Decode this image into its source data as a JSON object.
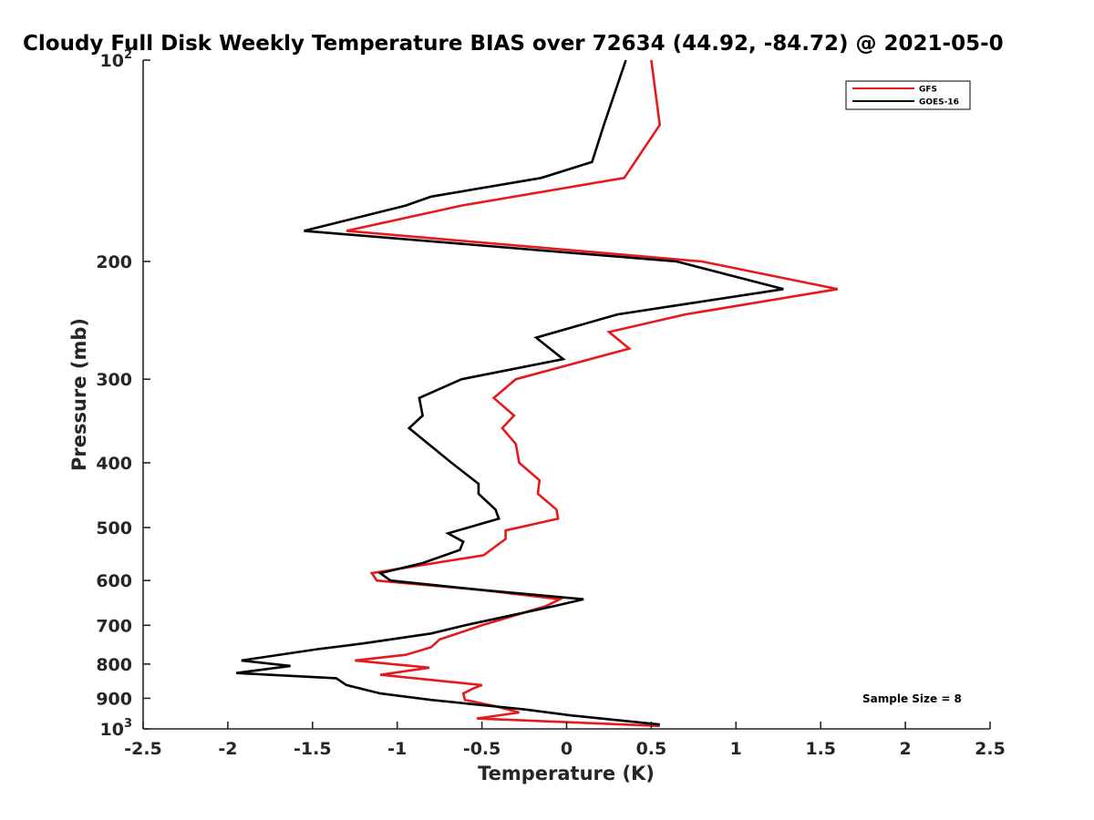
{
  "chart_data": {
    "type": "line",
    "title": "Cloudy Full Disk Weekly Temperature BIAS over 72634 (44.92, -84.72) @ 2021-05-0",
    "xlabel": "Temperature (K)",
    "ylabel": "Pressure (mb)",
    "xlim": [
      -2.5,
      2.5
    ],
    "ylim": [
      100,
      1000
    ],
    "y_scale": "log",
    "y_reversed": true,
    "x_ticks": [
      -2.5,
      -2,
      -1.5,
      -1,
      -0.5,
      0,
      0.5,
      1,
      1.5,
      2,
      2.5
    ],
    "x_tick_labels": [
      "-2.5",
      "-2",
      "-1.5",
      "-1",
      "-0.5",
      "0",
      "0.5",
      "1",
      "1.5",
      "2",
      "2.5"
    ],
    "y_ticks": [
      {
        "value": 100,
        "base": "10",
        "exp": "2"
      },
      {
        "value": 200,
        "label": "200"
      },
      {
        "value": 300,
        "label": "300"
      },
      {
        "value": 400,
        "label": "400"
      },
      {
        "value": 500,
        "label": "500"
      },
      {
        "value": 600,
        "label": "600"
      },
      {
        "value": 700,
        "label": "700"
      },
      {
        "value": 800,
        "label": "800"
      },
      {
        "value": 900,
        "label": "900"
      },
      {
        "value": 1000,
        "base": "10",
        "exp": "3"
      }
    ],
    "grid": false,
    "legend_position": "top-right",
    "annotation": "Sample Size = 8",
    "series": [
      {
        "name": "GFS",
        "color": "#e41a1c",
        "points": [
          [
            0.5,
            100
          ],
          [
            0.55,
            125
          ],
          [
            0.34,
            150
          ],
          [
            -0.62,
            165
          ],
          [
            -1.3,
            180
          ],
          [
            0.8,
            200
          ],
          [
            1.6,
            220
          ],
          [
            0.7,
            240
          ],
          [
            0.25,
            255
          ],
          [
            0.37,
            270
          ],
          [
            -0.3,
            300
          ],
          [
            -0.43,
            320
          ],
          [
            -0.31,
            340
          ],
          [
            -0.38,
            355
          ],
          [
            -0.3,
            375
          ],
          [
            -0.28,
            400
          ],
          [
            -0.16,
            425
          ],
          [
            -0.17,
            445
          ],
          [
            -0.06,
            470
          ],
          [
            -0.05,
            485
          ],
          [
            -0.36,
            505
          ],
          [
            -0.36,
            520
          ],
          [
            -0.49,
            550
          ],
          [
            -1.15,
            585
          ],
          [
            -1.12,
            600
          ],
          [
            -0.5,
            620
          ],
          [
            -0.04,
            640
          ],
          [
            -0.12,
            655
          ],
          [
            -0.5,
            700
          ],
          [
            -0.75,
            735
          ],
          [
            -0.8,
            755
          ],
          [
            -0.95,
            775
          ],
          [
            -1.25,
            790
          ],
          [
            -0.81,
            810
          ],
          [
            -1.1,
            830
          ],
          [
            -0.5,
            860
          ],
          [
            -0.55,
            870
          ],
          [
            -0.61,
            885
          ],
          [
            -0.6,
            905
          ],
          [
            -0.42,
            925
          ],
          [
            -0.28,
            945
          ],
          [
            -0.53,
            965
          ],
          [
            0.55,
            990
          ]
        ]
      },
      {
        "name": "GOES-16",
        "color": "#000000",
        "points": [
          [
            0.35,
            100
          ],
          [
            0.22,
            125
          ],
          [
            0.15,
            142
          ],
          [
            -0.15,
            150
          ],
          [
            -0.8,
            160
          ],
          [
            -0.95,
            165
          ],
          [
            -1.55,
            180
          ],
          [
            0.65,
            200
          ],
          [
            1.28,
            220
          ],
          [
            0.3,
            240
          ],
          [
            -0.18,
            260
          ],
          [
            -0.02,
            280
          ],
          [
            -0.62,
            300
          ],
          [
            -0.87,
            320
          ],
          [
            -0.85,
            340
          ],
          [
            -0.93,
            355
          ],
          [
            -0.68,
            400
          ],
          [
            -0.52,
            430
          ],
          [
            -0.52,
            445
          ],
          [
            -0.42,
            470
          ],
          [
            -0.4,
            485
          ],
          [
            -0.7,
            510
          ],
          [
            -0.61,
            525
          ],
          [
            -0.63,
            540
          ],
          [
            -0.85,
            565
          ],
          [
            -1.1,
            585
          ],
          [
            -1.04,
            600
          ],
          [
            -0.5,
            620
          ],
          [
            0.1,
            640
          ],
          [
            -0.07,
            655
          ],
          [
            -0.6,
            700
          ],
          [
            -0.8,
            720
          ],
          [
            -1.2,
            745
          ],
          [
            -1.47,
            760
          ],
          [
            -1.92,
            790
          ],
          [
            -1.63,
            805
          ],
          [
            -1.95,
            825
          ],
          [
            -1.36,
            840
          ],
          [
            -1.3,
            860
          ],
          [
            -1.1,
            885
          ],
          [
            -0.8,
            905
          ],
          [
            -0.25,
            935
          ],
          [
            0.03,
            955
          ],
          [
            0.55,
            985
          ]
        ]
      }
    ]
  }
}
